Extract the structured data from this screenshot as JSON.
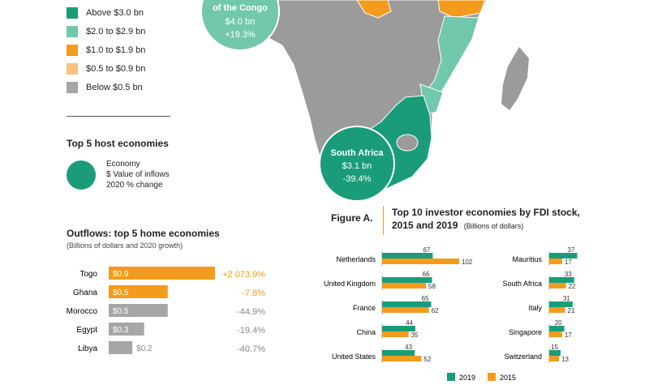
{
  "colors": {
    "dark_green": "#1a9c7a",
    "light_green": "#72c8ad",
    "orange": "#f39b1c",
    "light_orange": "#f7c27f",
    "gray": "#a6a6a6",
    "map_gray": "#9b9b9b"
  },
  "legend": {
    "items": [
      {
        "label": "Above $3.0 bn",
        "color": "#1a9c7a"
      },
      {
        "label": "$2.0 to $2.9 bn",
        "color": "#72c8ad"
      },
      {
        "label": "$1.0 to $1.9 bn",
        "color": "#f39b1c"
      },
      {
        "label": "$0.5 to $0.9 bn",
        "color": "#f7c27f"
      },
      {
        "label": "Below $0.5 bn",
        "color": "#a6a6a6"
      }
    ]
  },
  "top5": {
    "title": "Top 5 host economies",
    "key_lines": [
      "Economy",
      "$ Value of inflows",
      "2020 % change"
    ]
  },
  "map": {
    "congo": {
      "name_partial": "of the Congo",
      "value": "$4.0 bn",
      "change": "+19.3%"
    },
    "south_africa": {
      "name": "South Africa",
      "value": "$3.1 bn",
      "change": "-39.4%"
    }
  },
  "outflows": {
    "title": "Outflows: top 5 home economies",
    "subtitle": "(Billions of dollars and 2020 growth)"
  },
  "figure_a": {
    "label": "Figure A.",
    "title_line1": "Top 10 investor economies by FDI stock,",
    "title_line2": "2015 and 2019",
    "units": "(Billions of dollars)",
    "legend_2019": "2019",
    "legend_2015": "2015"
  },
  "chart_data": [
    {
      "type": "bar",
      "title": "Outflows: top 5 home economies",
      "subtitle": "(Billions of dollars and 2020 growth)",
      "categories": [
        "Togo",
        "Ghana",
        "Morocco",
        "Egypt",
        "Libya"
      ],
      "values": [
        0.9,
        0.5,
        0.5,
        0.3,
        0.2
      ],
      "value_labels": [
        "$0.9",
        "$0.5",
        "$0.5",
        "$0.3",
        "$0.2"
      ],
      "growth_labels": [
        "+2 073.9%",
        "-7.8%",
        "-44.9%",
        "-19.4%",
        "-40.7%"
      ],
      "bar_colors": [
        "#f39b1c",
        "#f39b1c",
        "#a6a6a6",
        "#a6a6a6",
        "#a6a6a6"
      ]
    },
    {
      "type": "bar",
      "title": "Top 10 investor economies by FDI stock, 2015 and 2019",
      "units": "(Billions of dollars)",
      "categories": [
        "Netherlands",
        "United Kingdom",
        "France",
        "China",
        "United States",
        "Mauritius",
        "South Africa",
        "Italy",
        "Singapore",
        "Switzerland"
      ],
      "series": [
        {
          "name": "2019",
          "color": "#1a9c7a",
          "values": [
            67,
            66,
            65,
            44,
            43,
            37,
            33,
            31,
            20,
            15
          ]
        },
        {
          "name": "2015",
          "color": "#f39b1c",
          "values": [
            102,
            58,
            62,
            35,
            52,
            17,
            22,
            21,
            17,
            13
          ]
        }
      ]
    }
  ]
}
